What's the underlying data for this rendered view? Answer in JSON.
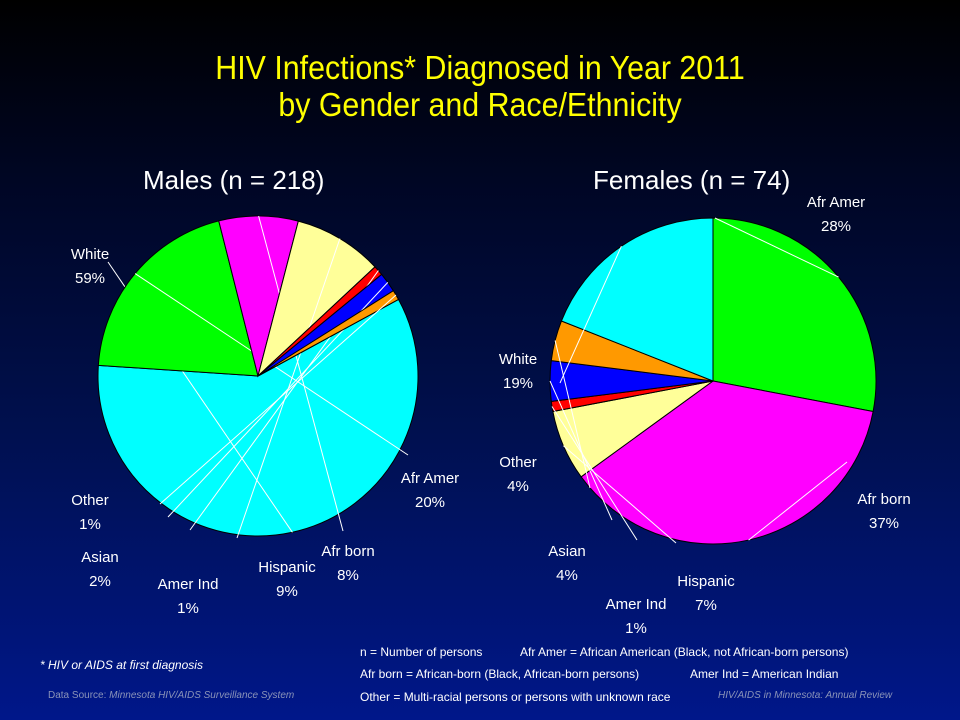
{
  "title": {
    "line1": "HIV Infections* Diagnosed in Year 2011",
    "line2": "by Gender and Race/Ethnicity"
  },
  "chart_data": [
    {
      "type": "pie",
      "title": "Males (n = 218)",
      "n": 218,
      "slices": [
        {
          "label": "White",
          "value": 59,
          "pct": "59%",
          "color": "#00ffff"
        },
        {
          "label": "Afr Amer",
          "value": 20,
          "pct": "20%",
          "color": "#00ff00"
        },
        {
          "label": "Afr born",
          "value": 8,
          "pct": "8%",
          "color": "#ff00ff"
        },
        {
          "label": "Hispanic",
          "value": 9,
          "pct": "9%",
          "color": "#ffff99"
        },
        {
          "label": "Amer Ind",
          "value": 1,
          "pct": "1%",
          "color": "#ff0000"
        },
        {
          "label": "Asian",
          "value": 2,
          "pct": "2%",
          "color": "#0000ff"
        },
        {
          "label": "Other",
          "value": 1,
          "pct": "1%",
          "color": "#ff9900"
        }
      ]
    },
    {
      "type": "pie",
      "title": "Females (n = 74)",
      "n": 74,
      "slices": [
        {
          "label": "Afr Amer",
          "value": 28,
          "pct": "28%",
          "color": "#00ff00"
        },
        {
          "label": "Afr born",
          "value": 37,
          "pct": "37%",
          "color": "#ff00ff"
        },
        {
          "label": "Hispanic",
          "value": 7,
          "pct": "7%",
          "color": "#ffff99"
        },
        {
          "label": "Amer Ind",
          "value": 1,
          "pct": "1%",
          "color": "#ff0000"
        },
        {
          "label": "Asian",
          "value": 4,
          "pct": "4%",
          "color": "#0000ff"
        },
        {
          "label": "Other",
          "value": 4,
          "pct": "4%",
          "color": "#ff9900"
        },
        {
          "label": "White",
          "value": 19,
          "pct": "19%",
          "color": "#00ffff"
        }
      ]
    }
  ],
  "footnote": "* HIV or AIDS at first diagnosis",
  "definitions": {
    "n": "n = Number of persons",
    "afr_amer": "Afr Amer = African American (Black, not African-born persons)",
    "afr_born": "Afr born = African-born (Black, African-born persons)",
    "amer_ind": "Amer Ind = American Indian",
    "other": "Other = Multi-racial persons or persons with unknown race"
  },
  "source": {
    "prefix": "Data Source:",
    "name": "Minnesota HIV/AIDS Surveillance System",
    "report": "HIV/AIDS in Minnesota: Annual Review"
  }
}
